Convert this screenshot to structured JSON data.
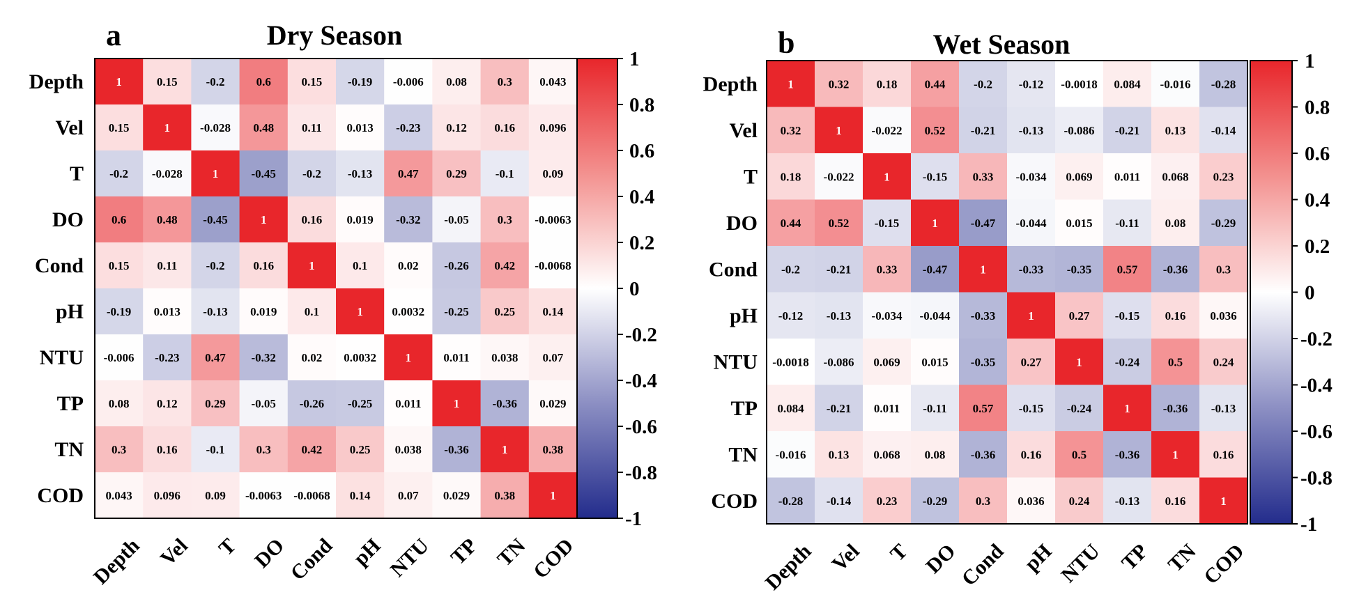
{
  "colors": {
    "high": "#e8262b",
    "mid": "#ffffff",
    "low": "#232c8c",
    "text": "#000000",
    "text_on_high": "#ffffff"
  },
  "chart_data": [
    {
      "type": "heatmap",
      "panel": "a",
      "title": "Dry Season",
      "variables": [
        "Depth",
        "Vel",
        "T",
        "DO",
        "Cond",
        "pH",
        "NTU",
        "TP",
        "TN",
        "COD"
      ],
      "labels": [
        [
          "1",
          "0.15",
          "-0.2",
          "0.6",
          "0.15",
          "-0.19",
          "-0.006",
          "0.08",
          "0.3",
          "0.043"
        ],
        [
          "0.15",
          "1",
          "-0.028",
          "0.48",
          "0.11",
          "0.013",
          "-0.23",
          "0.12",
          "0.16",
          "0.096"
        ],
        [
          "-0.2",
          "-0.028",
          "1",
          "-0.45",
          "-0.2",
          "-0.13",
          "0.47",
          "0.29",
          "-0.1",
          "0.09"
        ],
        [
          "0.6",
          "0.48",
          "-0.45",
          "1",
          "0.16",
          "0.019",
          "-0.32",
          "-0.05",
          "0.3",
          "-0.0063"
        ],
        [
          "0.15",
          "0.11",
          "-0.2",
          "0.16",
          "1",
          "0.1",
          "0.02",
          "-0.26",
          "0.42",
          "-0.0068"
        ],
        [
          "-0.19",
          "0.013",
          "-0.13",
          "0.019",
          "0.1",
          "1",
          "0.0032",
          "-0.25",
          "0.25",
          "0.14"
        ],
        [
          "-0.006",
          "-0.23",
          "0.47",
          "-0.32",
          "0.02",
          "0.0032",
          "1",
          "0.011",
          "0.038",
          "0.07"
        ],
        [
          "0.08",
          "0.12",
          "0.29",
          "-0.05",
          "-0.26",
          "-0.25",
          "0.011",
          "1",
          "-0.36",
          "0.029"
        ],
        [
          "0.3",
          "0.16",
          "-0.1",
          "0.3",
          "0.42",
          "0.25",
          "0.038",
          "-0.36",
          "1",
          "0.38"
        ],
        [
          "0.043",
          "0.096",
          "0.09",
          "-0.0063",
          "-0.0068",
          "0.14",
          "0.07",
          "0.029",
          "0.38",
          "1"
        ]
      ],
      "colorbar": {
        "range": [
          -1,
          1
        ],
        "ticks": [
          "1",
          "0.8",
          "0.6",
          "0.4",
          "0.2",
          "0",
          "-0.2",
          "-0.4",
          "-0.6",
          "-0.8",
          "-1"
        ]
      }
    },
    {
      "type": "heatmap",
      "panel": "b",
      "title": "Wet Season",
      "variables": [
        "Depth",
        "Vel",
        "T",
        "DO",
        "Cond",
        "pH",
        "NTU",
        "TP",
        "TN",
        "COD"
      ],
      "labels": [
        [
          "1",
          "0.32",
          "0.18",
          "0.44",
          "-0.2",
          "-0.12",
          "-0.0018",
          "0.084",
          "-0.016",
          "-0.28"
        ],
        [
          "0.32",
          "1",
          "-0.022",
          "0.52",
          "-0.21",
          "-0.13",
          "-0.086",
          "-0.21",
          "0.13",
          "-0.14"
        ],
        [
          "0.18",
          "-0.022",
          "1",
          "-0.15",
          "0.33",
          "-0.034",
          "0.069",
          "0.011",
          "0.068",
          "0.23"
        ],
        [
          "0.44",
          "0.52",
          "-0.15",
          "1",
          "-0.47",
          "-0.044",
          "0.015",
          "-0.11",
          "0.08",
          "-0.29"
        ],
        [
          "-0.2",
          "-0.21",
          "0.33",
          "-0.47",
          "1",
          "-0.33",
          "-0.35",
          "0.57",
          "-0.36",
          "0.3"
        ],
        [
          "-0.12",
          "-0.13",
          "-0.034",
          "-0.044",
          "-0.33",
          "1",
          "0.27",
          "-0.15",
          "0.16",
          "0.036"
        ],
        [
          "-0.0018",
          "-0.086",
          "0.069",
          "0.015",
          "-0.35",
          "0.27",
          "1",
          "-0.24",
          "0.5",
          "0.24"
        ],
        [
          "0.084",
          "-0.21",
          "0.011",
          "-0.11",
          "0.57",
          "-0.15",
          "-0.24",
          "1",
          "-0.36",
          "-0.13"
        ],
        [
          "-0.016",
          "0.13",
          "0.068",
          "0.08",
          "-0.36",
          "0.16",
          "0.5",
          "-0.36",
          "1",
          "0.16"
        ],
        [
          "-0.28",
          "-0.14",
          "0.23",
          "-0.29",
          "0.3",
          "0.036",
          "0.24",
          "-0.13",
          "0.16",
          "1"
        ]
      ],
      "colorbar": {
        "range": [
          -1,
          1
        ],
        "ticks": [
          "1",
          "0.8",
          "0.6",
          "0.4",
          "0.2",
          "0",
          "-0.2",
          "-0.4",
          "-0.6",
          "-0.8",
          "-1"
        ]
      }
    }
  ]
}
